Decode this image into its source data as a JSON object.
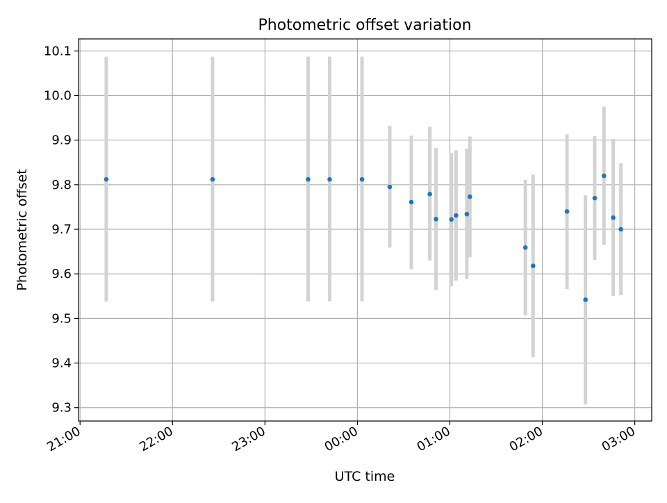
{
  "chart_data": {
    "type": "scatter",
    "title": "Photometric offset variation",
    "xlabel": "UTC time",
    "ylabel": "Photometric offset",
    "xlim": [
      "20:59",
      "03:11"
    ],
    "ylim": [
      9.27,
      10.127
    ],
    "grid": true,
    "x_ticks": [
      "21:00",
      "22:00",
      "23:00",
      "00:00",
      "01:00",
      "02:00",
      "03:00"
    ],
    "y_ticks": [
      "9.3",
      "9.4",
      "9.5",
      "9.6",
      "9.7",
      "9.8",
      "9.9",
      "10.0",
      "10.1"
    ],
    "point_color": "#1f77b4",
    "errorbar_color": "#d3d3d3",
    "series": [
      {
        "points": [
          {
            "x": "21:17",
            "y": 9.812,
            "low": 9.538,
            "high": 10.087
          },
          {
            "x": "22:26",
            "y": 9.812,
            "low": 9.538,
            "high": 10.087
          },
          {
            "x": "23:28",
            "y": 9.812,
            "low": 9.538,
            "high": 10.087
          },
          {
            "x": "23:42",
            "y": 9.812,
            "low": 9.538,
            "high": 10.087
          },
          {
            "x": "00:03",
            "y": 9.812,
            "low": 9.538,
            "high": 10.087
          },
          {
            "x": "00:21",
            "y": 9.795,
            "low": 9.659,
            "high": 9.932
          },
          {
            "x": "00:35",
            "y": 9.761,
            "low": 9.61,
            "high": 9.91
          },
          {
            "x": "00:47",
            "y": 9.779,
            "low": 9.63,
            "high": 9.93
          },
          {
            "x": "00:51",
            "y": 9.723,
            "low": 9.564,
            "high": 9.882
          },
          {
            "x": "01:01",
            "y": 9.722,
            "low": 9.572,
            "high": 9.871
          },
          {
            "x": "01:04",
            "y": 9.731,
            "low": 9.585,
            "high": 9.877
          },
          {
            "x": "01:11",
            "y": 9.734,
            "low": 9.588,
            "high": 9.881
          },
          {
            "x": "01:13",
            "y": 9.773,
            "low": 9.637,
            "high": 9.908
          },
          {
            "x": "01:49",
            "y": 9.659,
            "low": 9.507,
            "high": 9.811
          },
          {
            "x": "01:54",
            "y": 9.618,
            "low": 9.413,
            "high": 9.823
          },
          {
            "x": "02:16",
            "y": 9.74,
            "low": 9.566,
            "high": 9.913
          },
          {
            "x": "02:28",
            "y": 9.542,
            "low": 9.307,
            "high": 9.776
          },
          {
            "x": "02:34",
            "y": 9.77,
            "low": 9.631,
            "high": 9.909
          },
          {
            "x": "02:40",
            "y": 9.82,
            "low": 9.665,
            "high": 9.975
          },
          {
            "x": "02:46",
            "y": 9.726,
            "low": 9.55,
            "high": 9.903
          },
          {
            "x": "02:51",
            "y": 9.7,
            "low": 9.552,
            "high": 9.848
          }
        ]
      }
    ]
  }
}
